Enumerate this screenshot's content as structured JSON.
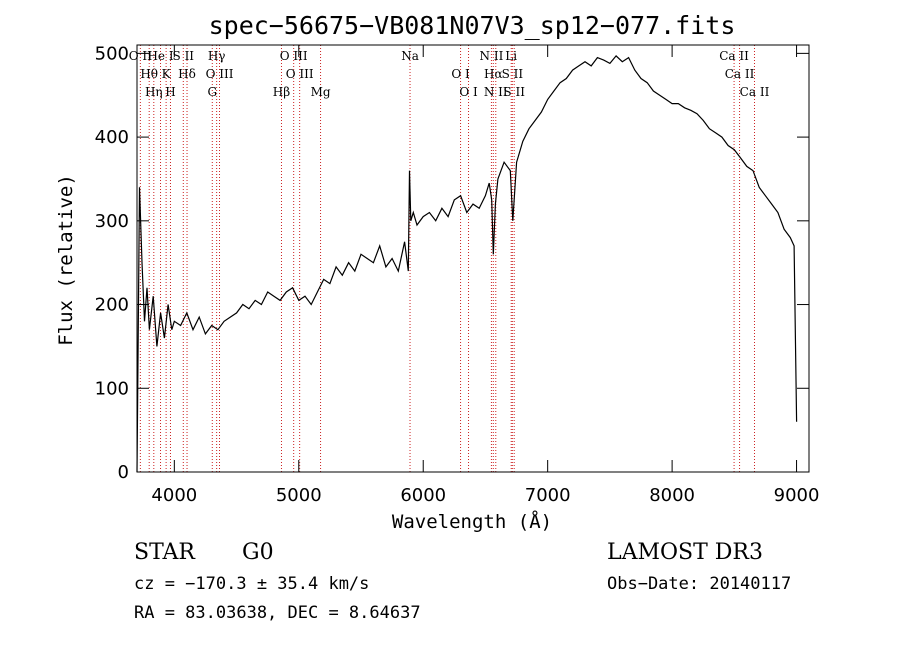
{
  "chart_data": {
    "type": "line",
    "title": "spec−56675−VB081N07V3_sp12−077.fits",
    "xlabel": "Wavelength (Å)",
    "ylabel": "Flux (relative)",
    "xlim": [
      3700,
      9100
    ],
    "ylim": [
      0,
      510
    ],
    "xticks": [
      4000,
      5000,
      6000,
      7000,
      8000,
      9000
    ],
    "yticks": [
      0,
      100,
      200,
      300,
      400,
      500
    ],
    "series": [
      {
        "name": "flux",
        "x": [
          3700,
          3720,
          3740,
          3760,
          3780,
          3800,
          3830,
          3860,
          3890,
          3920,
          3950,
          3980,
          4000,
          4050,
          4100,
          4150,
          4200,
          4250,
          4300,
          4350,
          4400,
          4450,
          4500,
          4550,
          4600,
          4650,
          4700,
          4750,
          4800,
          4850,
          4900,
          4950,
          5000,
          5050,
          5100,
          5150,
          5200,
          5250,
          5300,
          5350,
          5400,
          5450,
          5500,
          5550,
          5600,
          5650,
          5700,
          5750,
          5800,
          5850,
          5880,
          5890,
          5900,
          5920,
          5950,
          6000,
          6050,
          6100,
          6150,
          6200,
          6250,
          6300,
          6350,
          6400,
          6450,
          6500,
          6530,
          6550,
          6563,
          6580,
          6600,
          6650,
          6700,
          6720,
          6750,
          6800,
          6850,
          6900,
          6950,
          7000,
          7050,
          7100,
          7150,
          7200,
          7250,
          7300,
          7350,
          7400,
          7450,
          7500,
          7550,
          7600,
          7650,
          7700,
          7750,
          7800,
          7850,
          7900,
          7950,
          8000,
          8050,
          8100,
          8150,
          8200,
          8250,
          8300,
          8350,
          8400,
          8450,
          8500,
          8550,
          8600,
          8650,
          8700,
          8750,
          8800,
          8850,
          8900,
          8950,
          8980,
          9000
        ],
        "values": [
          0,
          340,
          250,
          180,
          220,
          170,
          210,
          150,
          190,
          160,
          200,
          170,
          180,
          175,
          190,
          170,
          185,
          165,
          175,
          170,
          180,
          185,
          190,
          200,
          195,
          205,
          200,
          215,
          210,
          205,
          215,
          220,
          205,
          210,
          200,
          215,
          230,
          225,
          245,
          235,
          250,
          240,
          260,
          255,
          250,
          270,
          245,
          255,
          240,
          275,
          240,
          360,
          300,
          310,
          295,
          305,
          310,
          300,
          315,
          305,
          325,
          330,
          310,
          320,
          315,
          330,
          345,
          325,
          260,
          320,
          350,
          370,
          360,
          300,
          370,
          395,
          410,
          420,
          430,
          445,
          455,
          465,
          470,
          480,
          485,
          490,
          485,
          495,
          492,
          488,
          497,
          490,
          495,
          480,
          470,
          465,
          455,
          450,
          445,
          440,
          440,
          435,
          432,
          428,
          420,
          410,
          405,
          400,
          390,
          385,
          375,
          365,
          360,
          340,
          330,
          320,
          310,
          290,
          280,
          270,
          60
        ]
      }
    ],
    "spectral_lines": [
      {
        "label": "O II",
        "wavelength": 3727
      },
      {
        "label": "Hθ",
        "wavelength": 3798
      },
      {
        "label": "Hη",
        "wavelength": 3835
      },
      {
        "label": "He I",
        "wavelength": 3889
      },
      {
        "label": "K",
        "wavelength": 3934
      },
      {
        "label": "H",
        "wavelength": 3969
      },
      {
        "label": "S II",
        "wavelength": 4072
      },
      {
        "label": "Hδ",
        "wavelength": 4102
      },
      {
        "label": "G",
        "wavelength": 4305
      },
      {
        "label": "Hγ",
        "wavelength": 4340
      },
      {
        "label": "O III",
        "wavelength": 4363
      },
      {
        "label": "Hβ",
        "wavelength": 4861
      },
      {
        "label": "O III",
        "wavelength": 4959
      },
      {
        "label": "O III",
        "wavelength": 5007
      },
      {
        "label": "Mg",
        "wavelength": 5175
      },
      {
        "label": "Na",
        "wavelength": 5894
      },
      {
        "label": "O I",
        "wavelength": 6300
      },
      {
        "label": "O I",
        "wavelength": 6364
      },
      {
        "label": "N II",
        "wavelength": 6548
      },
      {
        "label": "Hα",
        "wavelength": 6563
      },
      {
        "label": "N II",
        "wavelength": 6583
      },
      {
        "label": "Li",
        "wavelength": 6707
      },
      {
        "label": "S II",
        "wavelength": 6716
      },
      {
        "label": "S II",
        "wavelength": 6731
      },
      {
        "label": "Ca II",
        "wavelength": 8498
      },
      {
        "label": "Ca II",
        "wavelength": 8542
      },
      {
        "label": "Ca II",
        "wavelength": 8662
      }
    ],
    "line_color": "#000000",
    "marker_color": "#cc2222"
  },
  "info": {
    "object_class": "STAR",
    "subclass": "G0",
    "survey": "LAMOST DR3",
    "cz": "cz = −170.3 ± 35.4 km/s",
    "obs_date": "Obs−Date: 20140117",
    "radec": "RA =  83.03638, DEC =   8.64637"
  }
}
